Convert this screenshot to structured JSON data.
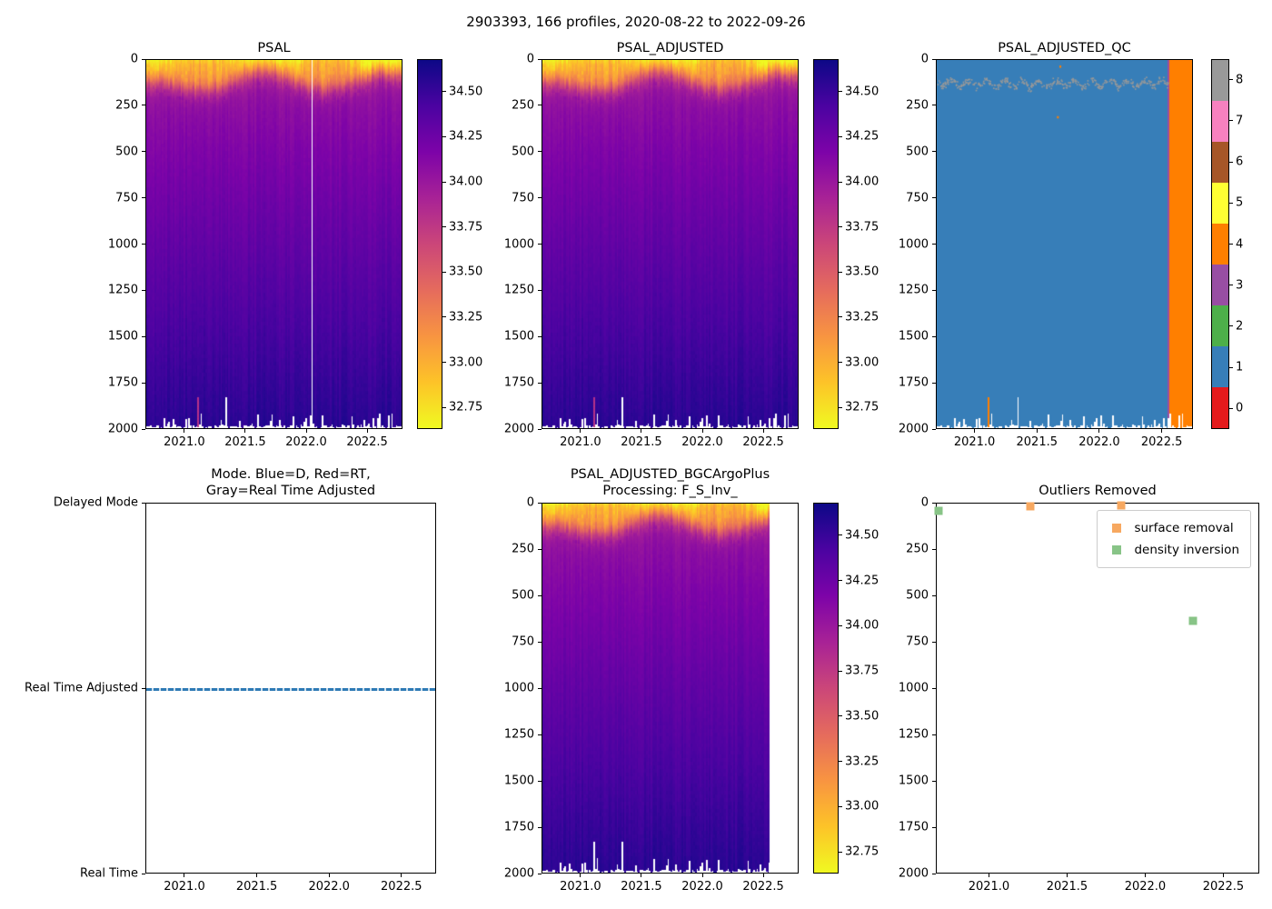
{
  "suptitle": "2903393, 166 profiles, 2020-08-22 to 2022-09-26",
  "palette": {
    "plasma_r_stops": [
      "#0d0887",
      "#4b03a1",
      "#7d03a8",
      "#a82296",
      "#cb4679",
      "#e56b5d",
      "#f89441",
      "#fdc328",
      "#f0f921"
    ],
    "qc_colors": {
      "0": "#e41a1c",
      "1": "#377eb8",
      "2": "#4daf4a",
      "3": "#984ea3",
      "4": "#ff7f00",
      "5": "#ffff33",
      "6": "#a65628",
      "7": "#f781bf",
      "8": "#999999"
    },
    "mode_line_blue": "#2e7ab5",
    "outlier_orange": "#f7a860",
    "outlier_green": "#88c487",
    "missing_data_white": "#ffffff"
  },
  "chart_data": [
    {
      "id": "psal",
      "type": "heatmap",
      "title": "PSAL",
      "colormap": "plasma_r",
      "xlim": [
        2020.68,
        2022.79
      ],
      "ylim": [
        2000,
        0
      ],
      "xticks": [
        2021.0,
        2021.5,
        2022.0,
        2022.5
      ],
      "xtick_labels": [
        "2021.0",
        "2021.5",
        "2022.0",
        "2022.5"
      ],
      "yticks": [
        0,
        250,
        500,
        750,
        1000,
        1250,
        1500,
        1750,
        2000
      ],
      "n_profiles": 166,
      "clim": [
        32.63,
        34.68
      ],
      "colorbar_ticks": [
        "34.50",
        "34.25",
        "34.00",
        "33.75",
        "33.50",
        "33.25",
        "33.00",
        "32.75"
      ],
      "colorbar_tick_values": [
        34.5,
        34.25,
        34.0,
        33.75,
        33.5,
        33.25,
        33.0,
        32.75
      ],
      "depth_salinity_profile": [
        [
          0,
          32.85
        ],
        [
          50,
          33.15
        ],
        [
          100,
          33.6
        ],
        [
          200,
          34.0
        ],
        [
          300,
          34.08
        ],
        [
          500,
          34.18
        ],
        [
          1000,
          34.32
        ],
        [
          1500,
          34.45
        ],
        [
          2000,
          34.57
        ]
      ],
      "mesh_range": [
        2020.68,
        2022.79
      ],
      "features": {
        "missing_profile_time": 2022.05,
        "deep_anomaly": {
          "time": 2021.1,
          "depth_range": [
            1830,
            2000
          ],
          "psal": 33.8
        },
        "shallow_profile": {
          "time": 2021.34,
          "max_depth": 1830
        },
        "mixed_layer": "fresh (32.7-33.3) surface layer 60-180 m deep, deepest near 2021.1 and 2022.1, shallow/bright near 2021.7 and after 2022.5"
      }
    },
    {
      "id": "psal_adjusted",
      "type": "heatmap",
      "title": "PSAL_ADJUSTED",
      "colormap": "plasma_r",
      "xlim": [
        2020.68,
        2022.79
      ],
      "ylim": [
        2000,
        0
      ],
      "xticks": [
        2021.0,
        2021.5,
        2022.0,
        2022.5
      ],
      "xtick_labels": [
        "2021.0",
        "2021.5",
        "2022.0",
        "2022.5"
      ],
      "yticks": [
        0,
        250,
        500,
        750,
        1000,
        1250,
        1500,
        1750,
        2000
      ],
      "n_profiles": 166,
      "clim": [
        32.63,
        34.68
      ],
      "colorbar_ticks": [
        "34.50",
        "34.25",
        "34.00",
        "33.75",
        "33.50",
        "33.25",
        "33.00",
        "32.75"
      ],
      "colorbar_tick_values": [
        34.5,
        34.25,
        34.0,
        33.75,
        33.5,
        33.25,
        33.0,
        32.75
      ],
      "depth_salinity_profile": [
        [
          0,
          32.85
        ],
        [
          50,
          33.15
        ],
        [
          100,
          33.6
        ],
        [
          200,
          34.0
        ],
        [
          300,
          34.08
        ],
        [
          500,
          34.18
        ],
        [
          1000,
          34.32
        ],
        [
          1500,
          34.45
        ],
        [
          2000,
          34.57
        ]
      ],
      "mesh_range": [
        2020.68,
        2022.79
      ],
      "features": {
        "deep_anomaly": {
          "time": 2021.1,
          "depth_range": [
            1830,
            2000
          ],
          "psal": 33.8
        },
        "shallow_profile": {
          "time": 2021.34,
          "max_depth": 1830
        }
      }
    },
    {
      "id": "psal_adjusted_qc",
      "type": "heatmap",
      "title": "PSAL_ADJUSTED_QC",
      "colormap": "Set1-discrete",
      "xlim": [
        2020.69,
        2022.75
      ],
      "ylim": [
        2000,
        0
      ],
      "xticks": [
        2021.0,
        2021.5,
        2022.0,
        2022.5
      ],
      "xtick_labels": [
        "2021.0",
        "2021.5",
        "2022.0",
        "2022.5"
      ],
      "yticks": [
        0,
        250,
        500,
        750,
        1000,
        1250,
        1500,
        1750,
        2000
      ],
      "clim": [
        -0.5,
        8.5
      ],
      "colorbar_ticks": [
        "8",
        "7",
        "6",
        "5",
        "4",
        "3",
        "2",
        "1",
        "0"
      ],
      "colorbar_tick_values": [
        8,
        7,
        6,
        5,
        4,
        3,
        2,
        1,
        0
      ],
      "features": {
        "background_qc": 1,
        "gray_speckle_band": {
          "qc": 8,
          "depth_center": 125,
          "depth_spread": 30
        },
        "orange_block": {
          "qc": 4,
          "time_range": [
            2022.555,
            2022.75
          ]
        },
        "purple_column": {
          "qc": 3,
          "time": 2022.548
        },
        "deep_orange_column": {
          "qc": 4,
          "time": 2021.1,
          "depth_range": [
            1830,
            2000
          ]
        },
        "orange_dots": [
          [
            2021.68,
            30
          ],
          [
            2021.66,
            305
          ]
        ],
        "shallow_profile": {
          "time": 2021.34,
          "max_depth": 1830
        }
      }
    },
    {
      "id": "mode",
      "type": "line",
      "title": "Mode. Blue=D, Red=RT,\nGray=Real Time Adjusted",
      "xlim": [
        2020.73,
        2022.74
      ],
      "ylim": [
        0,
        2
      ],
      "xticks": [
        2021.0,
        2021.5,
        2022.0,
        2022.5
      ],
      "xtick_labels": [
        "2021.0",
        "2021.5",
        "2022.0",
        "2022.5"
      ],
      "ytick_values": [
        2,
        1,
        0
      ],
      "ytick_labels": [
        "Delayed Mode",
        "Real Time Adjusted",
        "Real Time"
      ],
      "series": [
        {
          "name": "mode",
          "value_label": "Real Time Adjusted",
          "y": 1,
          "x_range": [
            2020.73,
            2022.74
          ],
          "style": "dashed",
          "color": "#2e7ab5"
        }
      ]
    },
    {
      "id": "psal_adjusted_bgcargoplus",
      "type": "heatmap",
      "title": "PSAL_ADJUSTED_BGCArgoPlus\nProcessing: F_S_Inv_",
      "colormap": "plasma_r",
      "xlim": [
        2020.68,
        2022.79
      ],
      "ylim": [
        2000,
        0
      ],
      "xticks": [
        2021.0,
        2021.5,
        2022.0,
        2022.5
      ],
      "xtick_labels": [
        "2021.0",
        "2021.5",
        "2022.0",
        "2022.5"
      ],
      "yticks": [
        0,
        250,
        500,
        750,
        1000,
        1250,
        1500,
        1750,
        2000
      ],
      "clim": [
        32.63,
        34.68
      ],
      "colorbar_ticks": [
        "34.50",
        "34.25",
        "34.00",
        "33.75",
        "33.50",
        "33.25",
        "33.00",
        "32.75"
      ],
      "colorbar_tick_values": [
        34.5,
        34.25,
        34.0,
        33.75,
        33.5,
        33.25,
        33.0,
        32.75
      ],
      "mesh_range": [
        2020.68,
        2022.555
      ],
      "features": {
        "deep_data_removed": {
          "time": 2021.1,
          "below_depth": 1830
        },
        "shallow_profile": {
          "time": 2021.34,
          "max_depth": 1830
        },
        "note": "product ends at 2022.55; flagged profiles after that are excluded"
      }
    },
    {
      "id": "outliers_removed",
      "type": "scatter",
      "title": "Outliers Removed",
      "xlim": [
        2020.66,
        2022.73
      ],
      "ylim": [
        2000,
        0
      ],
      "xticks": [
        2021.0,
        2021.5,
        2022.0,
        2022.5
      ],
      "xtick_labels": [
        "2021.0",
        "2021.5",
        "2022.0",
        "2022.5"
      ],
      "yticks": [
        0,
        250,
        500,
        750,
        1000,
        1250,
        1500,
        1750,
        2000
      ],
      "legend_position": "upper right",
      "series": [
        {
          "name": "surface removal",
          "color": "#f7a860",
          "points": [
            [
              2021.26,
              15
            ],
            [
              2021.84,
              12
            ]
          ]
        },
        {
          "name": "density inversion",
          "color": "#88c487",
          "points": [
            [
              2020.67,
              40
            ],
            [
              2022.3,
              630
            ]
          ]
        }
      ]
    }
  ]
}
